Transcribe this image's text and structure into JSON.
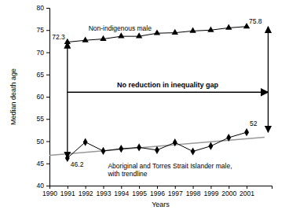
{
  "chart_data": {
    "type": "line",
    "x_label": "Years",
    "y_label": "Median death age",
    "x": [
      1991,
      1992,
      1993,
      1994,
      1995,
      1996,
      1997,
      1998,
      1999,
      2000,
      2001
    ],
    "series": [
      {
        "name": "Non-indigenous male",
        "color": "#000000",
        "marker": "triangle",
        "values": [
          72.3,
          72.7,
          73.0,
          73.6,
          73.6,
          74.3,
          74.4,
          74.8,
          75.0,
          75.5,
          75.8
        ],
        "value_labels": [
          "72.3",
          null,
          null,
          null,
          null,
          null,
          null,
          null,
          null,
          null,
          "75.8"
        ]
      },
      {
        "name": "Aboriginal and Torres Strait Islander male, with trendline",
        "color": "#000000",
        "marker": "diamond",
        "values": [
          46.2,
          49.8,
          47.8,
          48.3,
          48.6,
          48.0,
          49.7,
          47.7,
          48.9,
          50.8,
          52
        ],
        "value_labels": [
          "46.2",
          null,
          null,
          null,
          null,
          null,
          null,
          null,
          null,
          null,
          "52"
        ]
      }
    ],
    "trendline": {
      "x": [
        1990,
        2002
      ],
      "values": [
        46.8,
        50.9
      ],
      "color": "#999999"
    },
    "annotations": [
      {
        "text": "No reduction in inequality gap",
        "x": [
          1991,
          2002.2
        ],
        "y": 61
      }
    ],
    "data_labels": true,
    "xlim": [
      1990,
      2002.4
    ],
    "xticks": [
      1990,
      1991,
      1992,
      1993,
      1994,
      1995,
      1996,
      1997,
      1998,
      1999,
      2000,
      2001
    ],
    "ylim": [
      40,
      80
    ],
    "yticks": [
      40,
      45,
      50,
      55,
      60,
      65,
      70,
      75,
      80
    ],
    "grid": false
  }
}
